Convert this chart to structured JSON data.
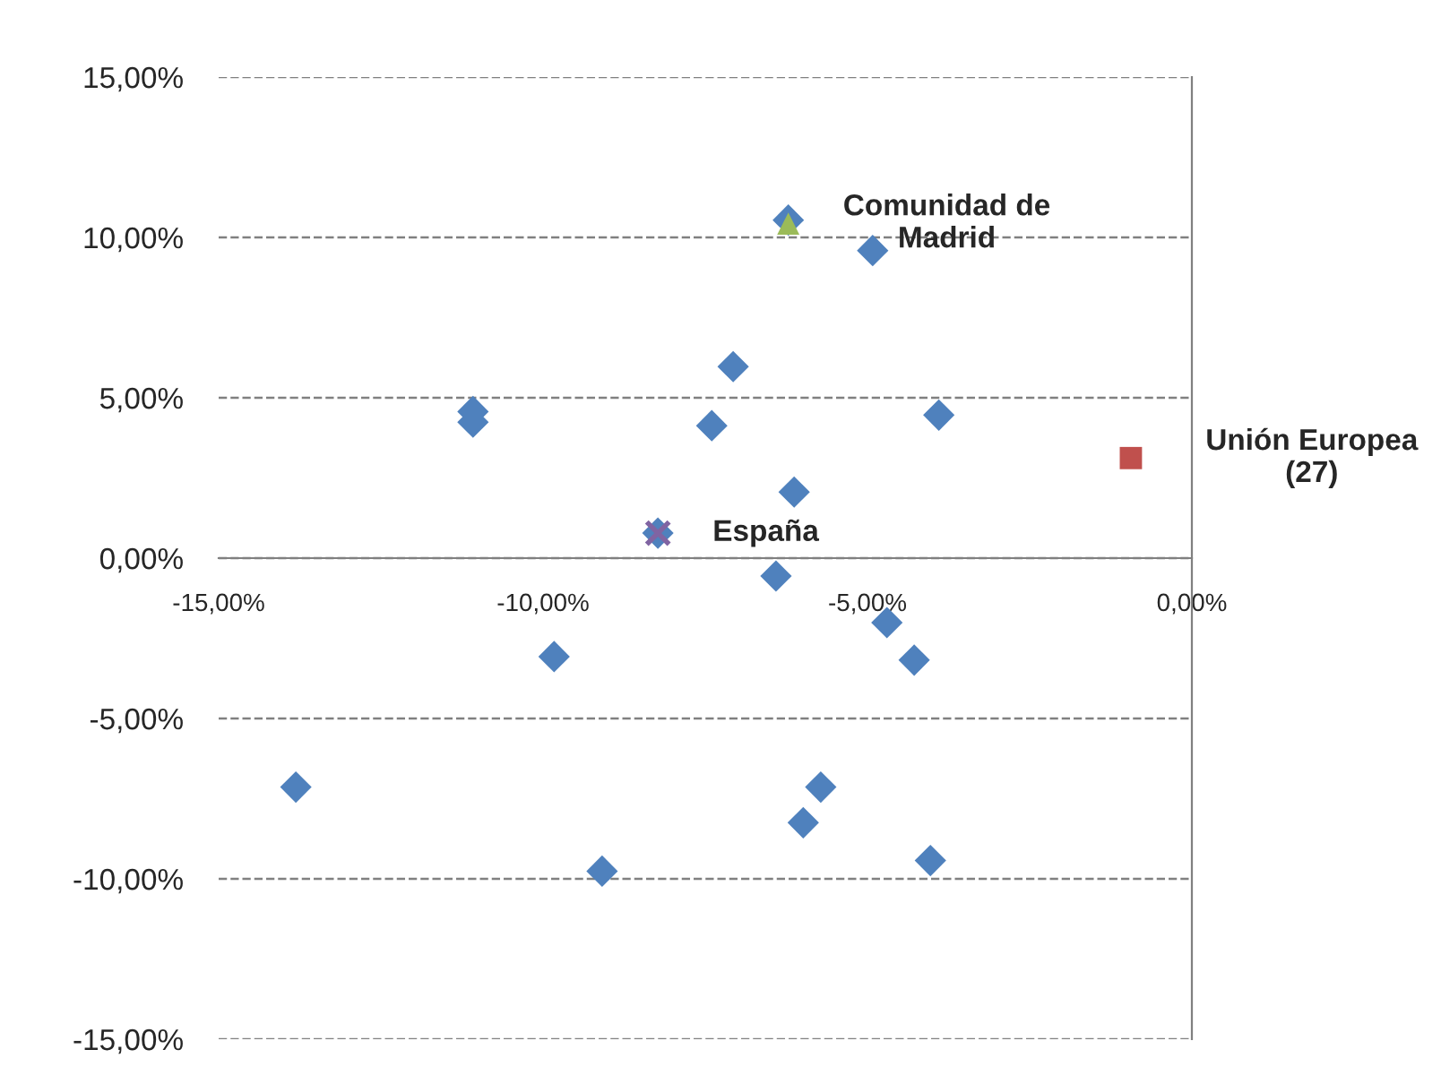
{
  "chart_data": {
    "type": "scatter",
    "series": [
      {
        "color": "#4f81bd",
        "marker": "diamond",
        "x": [
          -6.22,
          -4.92,
          -11.08,
          -11.08,
          -7.07,
          -7.4,
          -3.9,
          -6.13,
          -8.23,
          -6.41,
          -4.7,
          -9.83,
          -4.28,
          -13.81,
          -5.72,
          -5.99,
          -9.09,
          -4.03
        ],
        "values": [
          10.54,
          9.59,
          4.57,
          4.24,
          5.97,
          4.13,
          4.46,
          2.06,
          0.78,
          -0.56,
          -2.01,
          -3.07,
          -3.18,
          -7.14,
          -7.14,
          -8.25,
          -9.76,
          -9.43
        ]
      },
      {
        "name": "Comunidad de\nMadrid",
        "color": "#9bbb59",
        "marker": "triangle",
        "x": [
          -6.22
        ],
        "values": [
          10.43
        ]
      },
      {
        "name": "Unión Europea\n(27)",
        "color": "#c0504d",
        "marker": "square",
        "x": [
          -0.94
        ],
        "values": [
          3.12
        ]
      },
      {
        "name": "España",
        "color": "#8064a2",
        "marker": "cross",
        "x": [
          -8.23
        ],
        "values": [
          0.78
        ]
      }
    ],
    "xlim": [
      -15,
      0
    ],
    "ylim": [
      -15,
      15
    ],
    "xticks": [
      {
        "value": -15,
        "label": "-15,00%"
      },
      {
        "value": -10,
        "label": "-10,00%"
      },
      {
        "value": -5,
        "label": "-5,00%"
      },
      {
        "value": 0,
        "label": "0,00%"
      }
    ],
    "yticks": [
      {
        "value": -15,
        "label": "-15,00%"
      },
      {
        "value": -10,
        "label": "-10,00%"
      },
      {
        "value": -5,
        "label": "-5,00%"
      },
      {
        "value": 0,
        "label": "0,00%"
      },
      {
        "value": 5,
        "label": "5,00%"
      },
      {
        "value": 10,
        "label": "10,00%"
      },
      {
        "value": 15,
        "label": "15,00%"
      }
    ],
    "grid": "y",
    "legend": false
  }
}
